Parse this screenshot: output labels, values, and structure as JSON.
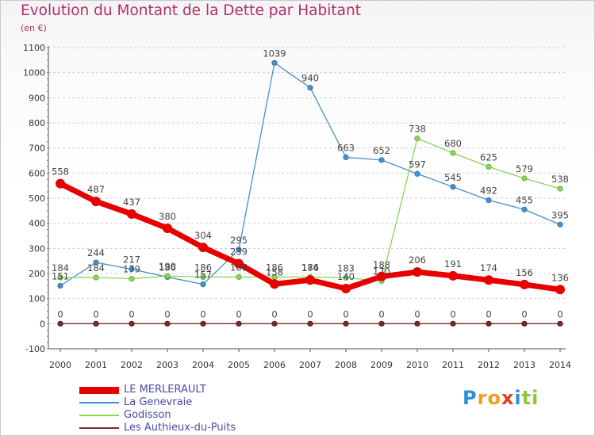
{
  "title": "Evolution du Montant de la Dette par Habitant",
  "subtitle": "(en €)",
  "logo": "Proxiti",
  "chart_data": {
    "type": "line",
    "title": "Evolution du Montant de la Dette par Habitant",
    "ylabel": "(en €)",
    "xlabel": "",
    "x": [
      "2000",
      "2001",
      "2002",
      "2003",
      "2004",
      "2005",
      "2006",
      "2007",
      "2008",
      "2009",
      "2010",
      "2011",
      "2012",
      "2013",
      "2014"
    ],
    "ylim": [
      -100,
      1100
    ],
    "yticks": [
      -100,
      0,
      100,
      200,
      300,
      400,
      500,
      600,
      700,
      800,
      900,
      1000,
      1100
    ],
    "grid": "horizontal dashed",
    "legend": "bottom-left",
    "series": [
      {
        "name": "LE MERLERAULT",
        "color": "#e80000",
        "values": [
          558,
          487,
          437,
          380,
          304,
          239,
          158,
          174,
          140,
          188,
          206,
          191,
          174,
          156,
          136
        ]
      },
      {
        "name": "La Genevraie",
        "color": "#4a90c8",
        "values": [
          151,
          244,
          217,
          186,
          157,
          295,
          1039,
          940,
          663,
          652,
          597,
          545,
          492,
          455,
          395
        ]
      },
      {
        "name": "Godisson",
        "color": "#8cd45a",
        "values": [
          184,
          184,
          179,
          190,
          186,
          186,
          186,
          186,
          183,
          170,
          738,
          680,
          625,
          579,
          538
        ]
      },
      {
        "name": "Les Authieux-du-Puits",
        "color": "#7a2a2a",
        "values": [
          0,
          0,
          0,
          0,
          0,
          0,
          0,
          0,
          0,
          0,
          0,
          0,
          0,
          0,
          0
        ]
      }
    ]
  }
}
